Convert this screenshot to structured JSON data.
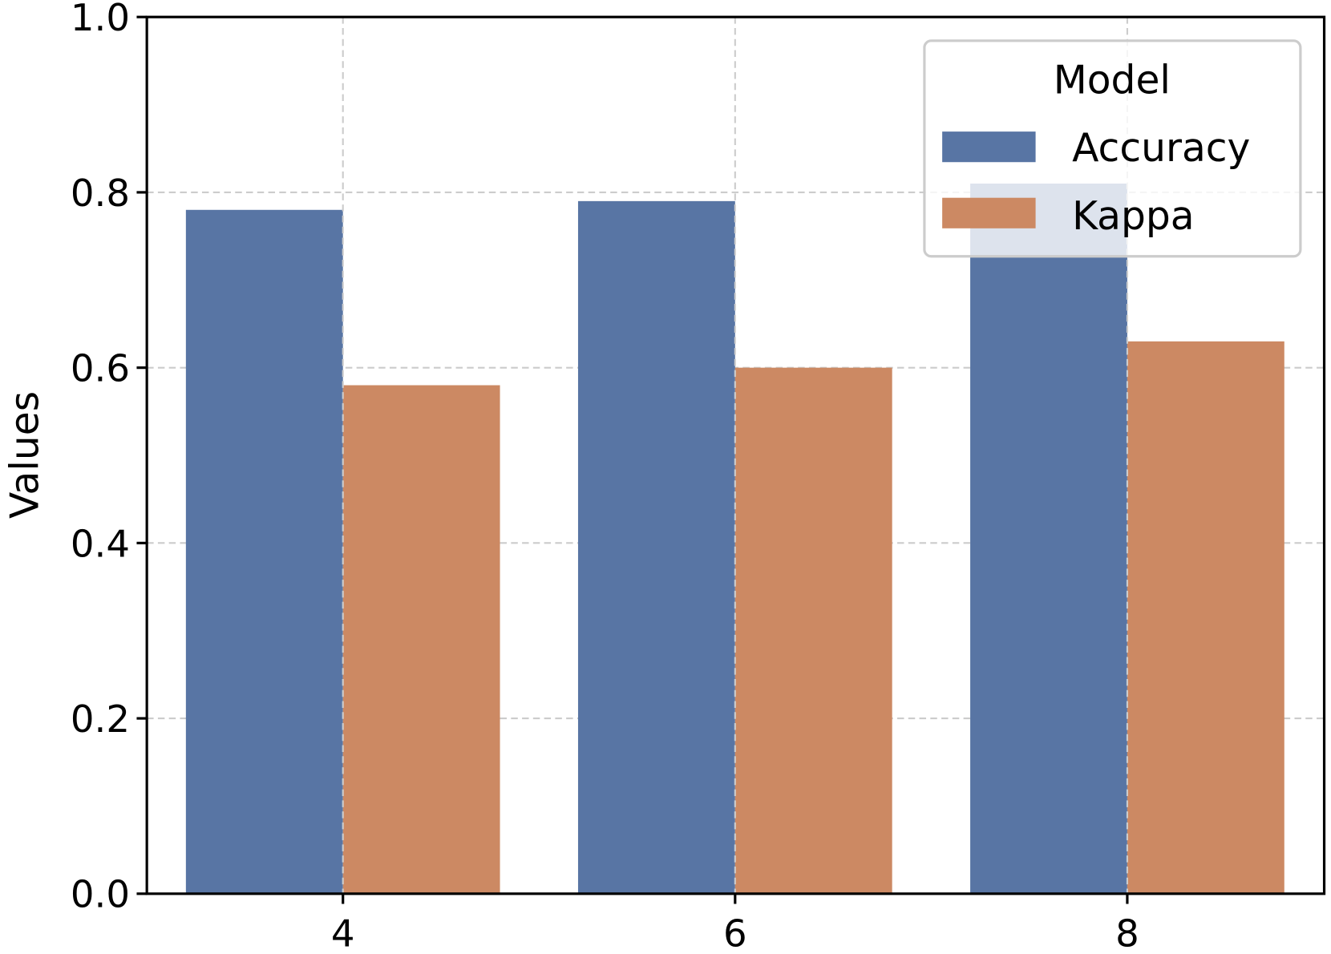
{
  "chart_data": {
    "type": "bar",
    "title": "",
    "xlabel": "",
    "ylabel": "Values",
    "categories": [
      "4",
      "6",
      "8"
    ],
    "series": [
      {
        "name": "Accuracy",
        "values": [
          0.78,
          0.79,
          0.81
        ],
        "color": "#5875a4"
      },
      {
        "name": "Kappa",
        "values": [
          0.58,
          0.6,
          0.63
        ],
        "color": "#cc8963"
      }
    ],
    "ylim": [
      0.0,
      1.0
    ],
    "yticks": [
      "0.0",
      "0.2",
      "0.4",
      "0.6",
      "0.8",
      "1.0"
    ],
    "grid": true,
    "legend": {
      "title": "Model",
      "placement": "top-right"
    }
  }
}
